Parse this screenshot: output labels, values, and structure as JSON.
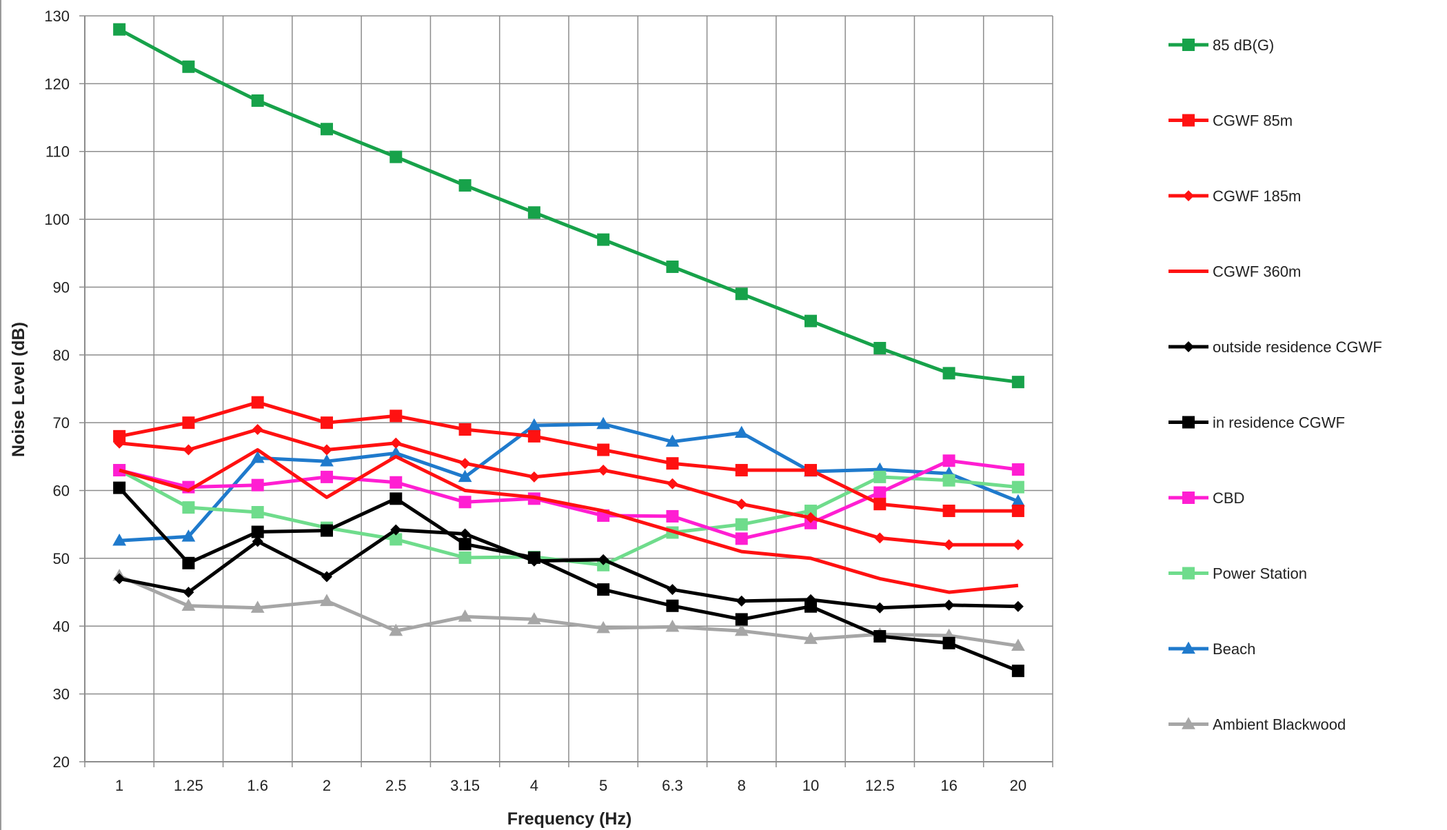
{
  "chart_data": {
    "type": "line",
    "title": "",
    "xlabel": "Frequency (Hz)",
    "ylabel": "Noise Level (dB)",
    "ylim": [
      20,
      130
    ],
    "yticks": [
      "20",
      "30",
      "40",
      "50",
      "60",
      "70",
      "80",
      "90",
      "100",
      "110",
      "120",
      "130"
    ],
    "categories": [
      "1",
      "1.25",
      "1.6",
      "2",
      "2.5",
      "3.15",
      "4",
      "5",
      "6.3",
      "8",
      "10",
      "12.5",
      "16",
      "20"
    ],
    "grid": true,
    "legend_position": "right",
    "series": [
      {
        "name": "85 dB(G)",
        "color": "#17a24a",
        "marker": "square",
        "values": [
          128,
          122.5,
          117.5,
          113.3,
          109.2,
          105,
          101,
          97,
          93,
          89,
          85,
          81,
          77.3,
          76
        ]
      },
      {
        "name": "CGWF 85m",
        "color": "#ff1111",
        "marker": "square",
        "values": [
          68,
          70,
          73,
          70,
          71,
          69,
          68,
          66,
          64,
          63,
          63,
          58,
          57,
          57
        ]
      },
      {
        "name": "CGWF 185m",
        "color": "#ff1111",
        "marker": "diamond",
        "values": [
          67,
          66,
          69,
          66,
          67,
          64,
          62,
          63,
          61,
          58,
          56,
          53,
          52,
          52
        ]
      },
      {
        "name": "CGWF 360m",
        "color": "#ff1111",
        "marker": "none",
        "values": [
          63,
          60,
          66,
          59,
          65,
          60,
          59,
          57,
          54,
          51,
          50,
          47,
          45,
          46
        ]
      },
      {
        "name": "outside residence CGWF",
        "color": "#000000",
        "marker": "diamond",
        "values": [
          47,
          45,
          52.5,
          47.3,
          54.2,
          53.6,
          49.6,
          49.8,
          45.4,
          43.7,
          43.9,
          42.7,
          43.1,
          42.9
        ]
      },
      {
        "name": "in residence CGWF",
        "color": "#000000",
        "marker": "square",
        "values": [
          60.4,
          49.3,
          53.9,
          54.1,
          58.8,
          52.1,
          50.1,
          45.4,
          43,
          41,
          42.9,
          38.5,
          37.5,
          33.4
        ]
      },
      {
        "name": "CBD",
        "color": "#ff1ed2",
        "marker": "square",
        "values": [
          63,
          60.5,
          60.8,
          62,
          61.2,
          58.3,
          58.8,
          56.3,
          56.2,
          52.9,
          55.2,
          59.7,
          64.4,
          63.1
        ]
      },
      {
        "name": "Power Station",
        "color": "#6fdc8c",
        "marker": "square",
        "values": [
          63,
          57.5,
          56.8,
          54.5,
          52.8,
          50.1,
          50.2,
          49,
          53.8,
          55,
          57,
          62,
          61.5,
          60.5
        ]
      },
      {
        "name": "Beach",
        "color": "#1f7acc",
        "marker": "triangle",
        "values": [
          52.6,
          53.2,
          64.8,
          64.3,
          65.5,
          62,
          69.6,
          69.8,
          67.2,
          68.5,
          62.8,
          63.1,
          62.5,
          58.4
        ]
      },
      {
        "name": "Ambient Blackwood",
        "color": "#a6a6a6",
        "marker": "triangle",
        "values": [
          47.4,
          43,
          42.7,
          43.7,
          39.3,
          41.4,
          41,
          39.7,
          39.9,
          39.3,
          38.1,
          38.8,
          38.6,
          37.1
        ]
      }
    ]
  }
}
